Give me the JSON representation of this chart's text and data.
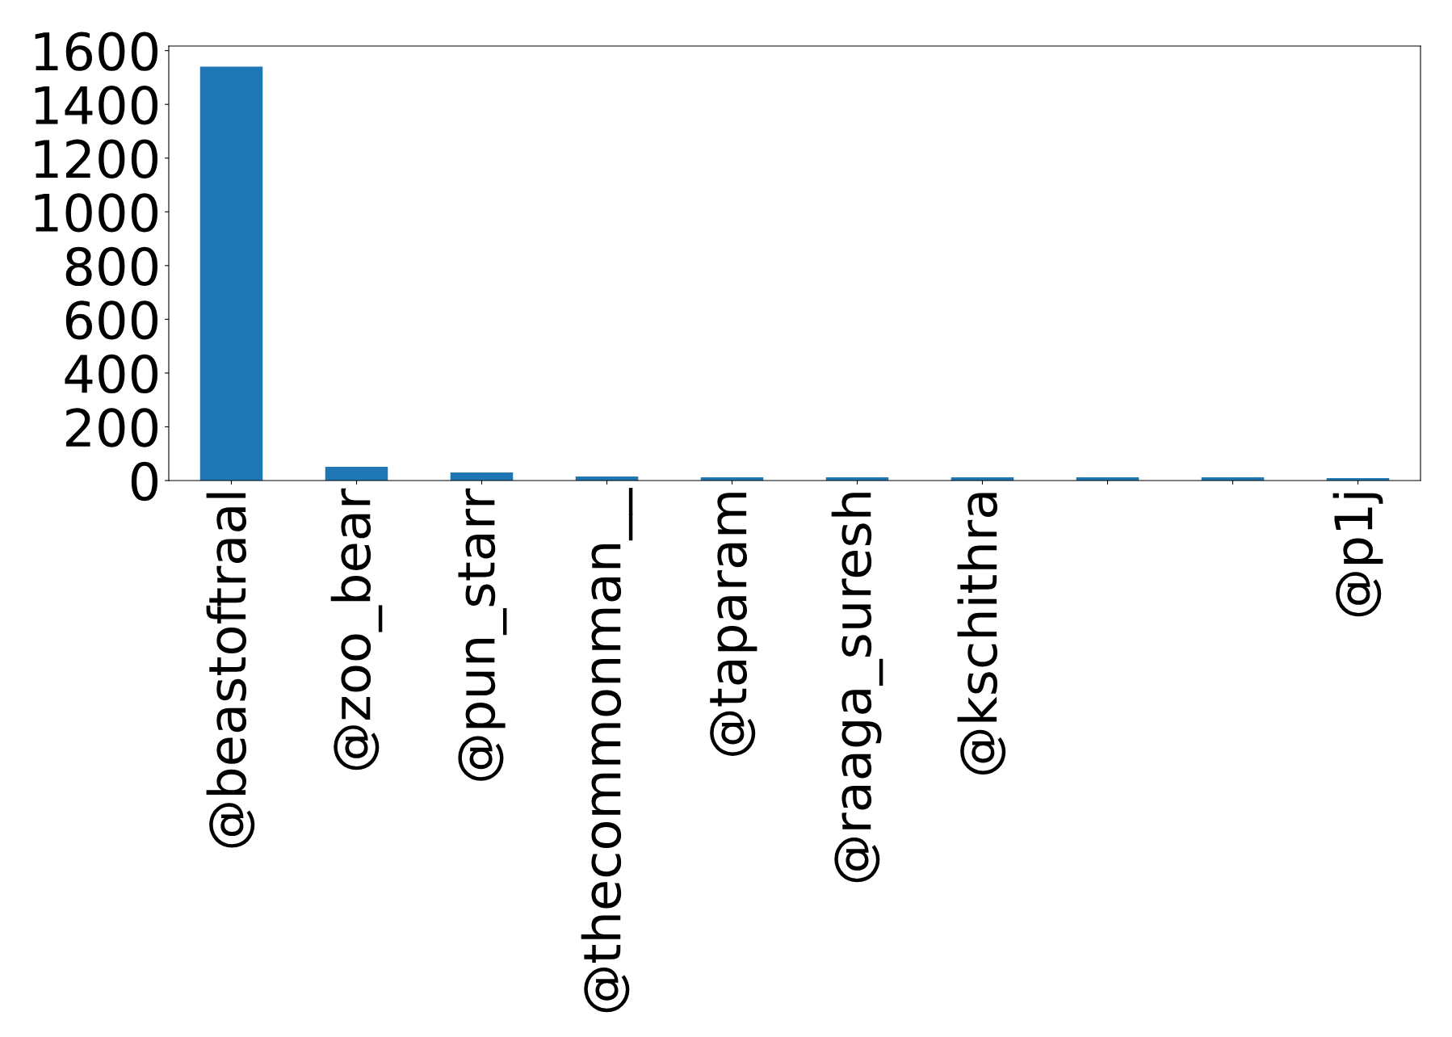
{
  "chart_data": {
    "type": "bar",
    "categories": [
      "@beastoftraal",
      "@zoo_bear",
      "@pun_starr",
      "@thecommonman__",
      "@taparam",
      "@raaga_suresh",
      "@kschithra",
      null,
      null,
      "@p1j"
    ],
    "values": [
      1540,
      51,
      30,
      15,
      12,
      12,
      12,
      12,
      12,
      9
    ],
    "color": "#1f77b4",
    "ylim": [
      0,
      1617
    ],
    "yticks": [
      0,
      200,
      400,
      600,
      800,
      1000,
      1200,
      1400,
      1600
    ],
    "grid": false,
    "legend": false
  }
}
